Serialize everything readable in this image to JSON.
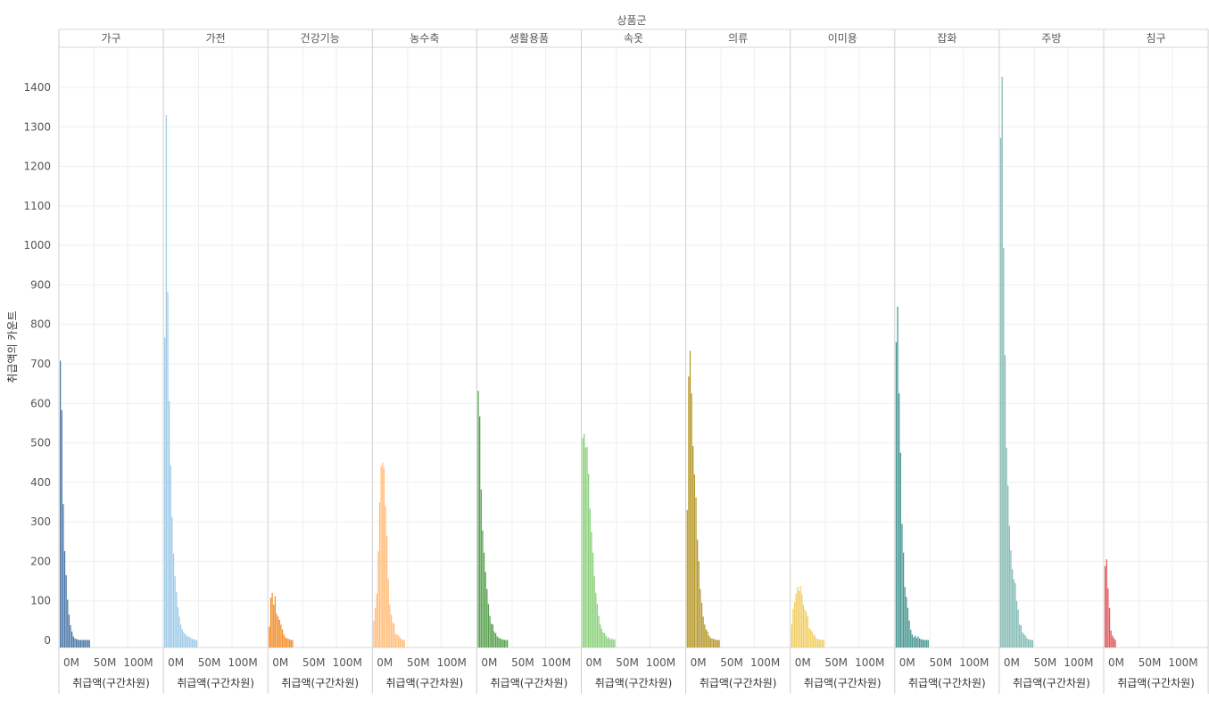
{
  "chart_data": {
    "type": "bar",
    "column_header": "상품군",
    "ylabel": "취급액의 카운트",
    "xlabel": "취급액(구간차원)",
    "x_ticks": [
      "0M",
      "50M",
      "100M"
    ],
    "y_ticks": [
      0,
      100,
      200,
      300,
      400,
      500,
      600,
      700,
      800,
      900,
      1000,
      1100,
      1200,
      1300,
      1400
    ],
    "ylim": [
      0,
      1500
    ],
    "grid": true,
    "panels": [
      {
        "category": "가구",
        "color": "#4e79a7",
        "values": [
          708,
          583,
          345,
          226,
          165,
          103,
          65,
          38,
          22,
          10,
          5,
          3,
          2,
          1,
          1,
          1,
          1,
          1,
          1,
          1,
          1,
          0,
          0
        ]
      },
      {
        "category": "가전",
        "color": "#a0cbe8",
        "values": [
          767,
          1330,
          882,
          606,
          443,
          312,
          220,
          162,
          122,
          84,
          60,
          40,
          28,
          20,
          16,
          12,
          10,
          8,
          6,
          4,
          2,
          2,
          1
        ]
      },
      {
        "category": "건강기능",
        "color": "#f28e2b",
        "values": [
          35,
          108,
          120,
          90,
          112,
          68,
          60,
          52,
          40,
          28,
          15,
          8,
          5,
          4,
          2,
          1,
          1,
          0,
          0,
          0,
          0,
          0,
          0
        ]
      },
      {
        "category": "농수축",
        "color": "#ffbe7d",
        "values": [
          50,
          82,
          118,
          225,
          350,
          440,
          450,
          437,
          340,
          265,
          155,
          90,
          65,
          45,
          42,
          15,
          15,
          12,
          8,
          3,
          2,
          1,
          0
        ]
      },
      {
        "category": "생활용품",
        "color": "#59a14f",
        "values": [
          632,
          567,
          382,
          278,
          222,
          173,
          130,
          92,
          62,
          42,
          40,
          22,
          18,
          10,
          7,
          5,
          3,
          2,
          1,
          1,
          1,
          0,
          0
        ]
      },
      {
        "category": "속옷",
        "color": "#8cd17d",
        "values": [
          512,
          523,
          488,
          490,
          422,
          333,
          275,
          222,
          162,
          120,
          92,
          62,
          40,
          30,
          20,
          18,
          12,
          6,
          8,
          2,
          5,
          1,
          3
        ]
      },
      {
        "category": "의류",
        "color": "#b6992d",
        "values": [
          330,
          668,
          733,
          625,
          492,
          420,
          362,
          255,
          200,
          130,
          95,
          60,
          40,
          28,
          22,
          12,
          6,
          5,
          4,
          2,
          1,
          1,
          1
        ]
      },
      {
        "category": "이미용",
        "color": "#f1ce63",
        "values": [
          40,
          80,
          97,
          118,
          135,
          125,
          138,
          117,
          90,
          78,
          72,
          60,
          30,
          28,
          22,
          15,
          12,
          5,
          3,
          2,
          1,
          1,
          1
        ]
      },
      {
        "category": "잡화",
        "color": "#499894",
        "values": [
          755,
          845,
          625,
          475,
          295,
          222,
          135,
          110,
          82,
          50,
          27,
          15,
          8,
          12,
          6,
          10,
          5,
          3,
          2,
          1,
          1,
          1,
          1
        ]
      },
      {
        "category": "주방",
        "color": "#86bcb6",
        "values": [
          1272,
          1427,
          993,
          722,
          488,
          392,
          290,
          228,
          180,
          155,
          145,
          100,
          78,
          40,
          38,
          20,
          16,
          12,
          6,
          3,
          2,
          1,
          1
        ]
      },
      {
        "category": "침구",
        "color": "#e15759",
        "values": [
          188,
          205,
          132,
          82,
          25,
          12,
          6,
          1,
          0,
          0,
          0,
          0,
          0,
          0,
          0,
          0,
          0,
          0,
          0,
          0,
          0,
          0,
          0
        ]
      }
    ]
  }
}
